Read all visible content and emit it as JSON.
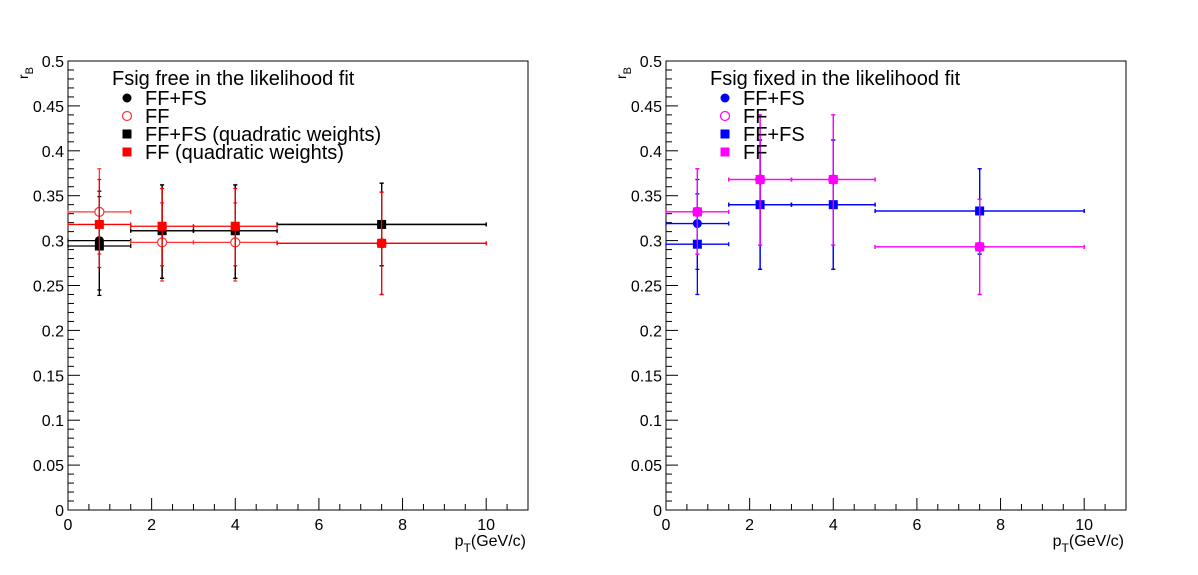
{
  "chart_data": [
    {
      "type": "scatter",
      "title": "",
      "legend_header": "Fsig free in the likelihood fit",
      "legend_position": "top-left",
      "xlabel_main": "p",
      "xlabel_sub": "T",
      "xlabel_unit": "(GeV/c)",
      "ylabel_main": "r",
      "ylabel_sub": "B",
      "xlim": [
        0,
        11
      ],
      "ylim": [
        0,
        0.5
      ],
      "xticks": [
        0,
        2,
        4,
        6,
        8,
        10
      ],
      "xtick_labels": [
        "0",
        "2",
        "4",
        "6",
        "8",
        "10"
      ],
      "yticks": [
        0,
        0.05,
        0.1,
        0.15,
        0.2,
        0.25,
        0.3,
        0.35,
        0.4,
        0.45,
        0.5
      ],
      "ytick_labels": [
        "0",
        "0.05",
        "0.1",
        "0.15",
        "0.2",
        "0.25",
        "0.3",
        "0.35",
        "0.4",
        "0.45",
        "0.5"
      ],
      "grid": false,
      "series": [
        {
          "name": "FF+FS",
          "marker": "circle",
          "filled": true,
          "color": "#000000",
          "points": [
            {
              "x": 0.75,
              "y": 0.3,
              "xlo": 0,
              "xhi": 1.5,
              "ylo": 0.245,
              "yhi": 0.355
            },
            {
              "x": 2.25,
              "y": 0.311,
              "xlo": 1.5,
              "xhi": 3,
              "ylo": 0.258,
              "yhi": 0.362
            },
            {
              "x": 4.0,
              "y": 0.311,
              "xlo": 3,
              "xhi": 5,
              "ylo": 0.258,
              "yhi": 0.362
            },
            {
              "x": 7.5,
              "y": 0.318,
              "xlo": 5,
              "xhi": 10,
              "ylo": 0.272,
              "yhi": 0.364
            }
          ]
        },
        {
          "name": "FF",
          "marker": "circle",
          "filled": false,
          "color": "#ff3333",
          "points": [
            {
              "x": 0.75,
              "y": 0.332,
              "xlo": 0,
              "xhi": 1.5,
              "ylo": 0.285,
              "yhi": 0.38
            },
            {
              "x": 2.25,
              "y": 0.298,
              "xlo": 1.5,
              "xhi": 3,
              "ylo": 0.255,
              "yhi": 0.342
            },
            {
              "x": 4.0,
              "y": 0.298,
              "xlo": 3,
              "xhi": 5,
              "ylo": 0.255,
              "yhi": 0.342
            },
            {
              "x": 7.5,
              "y": 0.297,
              "xlo": 5,
              "xhi": 10,
              "ylo": 0.24,
              "yhi": 0.354
            }
          ]
        },
        {
          "name": "FF+FS (quadratic weights)",
          "marker": "square",
          "filled": true,
          "color": "#000000",
          "points": [
            {
              "x": 0.75,
              "y": 0.294,
              "xlo": 0,
              "xhi": 1.5,
              "ylo": 0.239,
              "yhi": 0.349
            },
            {
              "x": 2.25,
              "y": 0.311,
              "xlo": 1.5,
              "xhi": 3,
              "ylo": 0.258,
              "yhi": 0.362
            },
            {
              "x": 4.0,
              "y": 0.311,
              "xlo": 3,
              "xhi": 5,
              "ylo": 0.258,
              "yhi": 0.362
            },
            {
              "x": 7.5,
              "y": 0.318,
              "xlo": 5,
              "xhi": 10,
              "ylo": 0.272,
              "yhi": 0.364
            }
          ]
        },
        {
          "name": "FF (quadratic weights)",
          "marker": "square",
          "filled": true,
          "color": "#ff0000",
          "points": [
            {
              "x": 0.75,
              "y": 0.318,
              "xlo": 0,
              "xhi": 1.5,
              "ylo": 0.27,
              "yhi": 0.368
            },
            {
              "x": 2.25,
              "y": 0.316,
              "xlo": 1.5,
              "xhi": 3,
              "ylo": 0.272,
              "yhi": 0.358
            },
            {
              "x": 4.0,
              "y": 0.316,
              "xlo": 3,
              "xhi": 5,
              "ylo": 0.272,
              "yhi": 0.358
            },
            {
              "x": 7.5,
              "y": 0.297,
              "xlo": 5,
              "xhi": 10,
              "ylo": 0.24,
              "yhi": 0.354
            }
          ]
        }
      ]
    },
    {
      "type": "scatter",
      "title": "",
      "legend_header": "Fsig fixed in the likelihood fit",
      "legend_position": "top-left",
      "xlabel_main": "p",
      "xlabel_sub": "T",
      "xlabel_unit": "(GeV/c)",
      "ylabel_main": "r",
      "ylabel_sub": "B",
      "xlim": [
        0,
        11
      ],
      "ylim": [
        0,
        0.5
      ],
      "xticks": [
        0,
        2,
        4,
        6,
        8,
        10
      ],
      "xtick_labels": [
        "0",
        "2",
        "4",
        "6",
        "8",
        "10"
      ],
      "yticks": [
        0,
        0.05,
        0.1,
        0.15,
        0.2,
        0.25,
        0.3,
        0.35,
        0.4,
        0.45,
        0.5
      ],
      "ytick_labels": [
        "0",
        "0.05",
        "0.1",
        "0.15",
        "0.2",
        "0.25",
        "0.3",
        "0.35",
        "0.4",
        "0.45",
        "0.5"
      ],
      "grid": false,
      "series": [
        {
          "name": "FF+FS",
          "marker": "circle",
          "filled": true,
          "color": "#0000ff",
          "points": [
            {
              "x": 0.75,
              "y": 0.319,
              "xlo": 0,
              "xhi": 1.5,
              "ylo": 0.268,
              "yhi": 0.368
            },
            {
              "x": 2.25,
              "y": 0.34,
              "xlo": 1.5,
              "xhi": 3,
              "ylo": 0.268,
              "yhi": 0.412
            },
            {
              "x": 4.0,
              "y": 0.34,
              "xlo": 3,
              "xhi": 5,
              "ylo": 0.268,
              "yhi": 0.412
            },
            {
              "x": 7.5,
              "y": 0.333,
              "xlo": 5,
              "xhi": 10,
              "ylo": 0.285,
              "yhi": 0.38
            }
          ]
        },
        {
          "name": "FF",
          "marker": "circle",
          "filled": false,
          "color": "#ff00ff",
          "points": [
            {
              "x": 0.75,
              "y": 0.332,
              "xlo": 0,
              "xhi": 1.5,
              "ylo": 0.285,
              "yhi": 0.38
            },
            {
              "x": 2.25,
              "y": 0.368,
              "xlo": 1.5,
              "xhi": 3,
              "ylo": 0.295,
              "yhi": 0.44
            },
            {
              "x": 4.0,
              "y": 0.368,
              "xlo": 3,
              "xhi": 5,
              "ylo": 0.295,
              "yhi": 0.44
            },
            {
              "x": 7.5,
              "y": 0.293,
              "xlo": 5,
              "xhi": 10,
              "ylo": 0.24,
              "yhi": 0.346
            }
          ]
        },
        {
          "name": "FF+FS",
          "marker": "square",
          "filled": true,
          "color": "#0000ff",
          "points": [
            {
              "x": 0.75,
              "y": 0.296,
              "xlo": 0,
              "xhi": 1.5,
              "ylo": 0.24,
              "yhi": 0.352
            },
            {
              "x": 2.25,
              "y": 0.34,
              "xlo": 1.5,
              "xhi": 3,
              "ylo": 0.268,
              "yhi": 0.412
            },
            {
              "x": 4.0,
              "y": 0.34,
              "xlo": 3,
              "xhi": 5,
              "ylo": 0.268,
              "yhi": 0.412
            },
            {
              "x": 7.5,
              "y": 0.333,
              "xlo": 5,
              "xhi": 10,
              "ylo": 0.285,
              "yhi": 0.38
            }
          ]
        },
        {
          "name": "FF",
          "marker": "square",
          "filled": true,
          "color": "#ff00ff",
          "points": [
            {
              "x": 0.75,
              "y": 0.332,
              "xlo": 0,
              "xhi": 1.5,
              "ylo": 0.285,
              "yhi": 0.38
            },
            {
              "x": 2.25,
              "y": 0.368,
              "xlo": 1.5,
              "xhi": 3,
              "ylo": 0.295,
              "yhi": 0.44
            },
            {
              "x": 4.0,
              "y": 0.368,
              "xlo": 3,
              "xhi": 5,
              "ylo": 0.295,
              "yhi": 0.44
            },
            {
              "x": 7.5,
              "y": 0.293,
              "xlo": 5,
              "xhi": 10,
              "ylo": 0.24,
              "yhi": 0.346
            }
          ]
        }
      ]
    }
  ]
}
